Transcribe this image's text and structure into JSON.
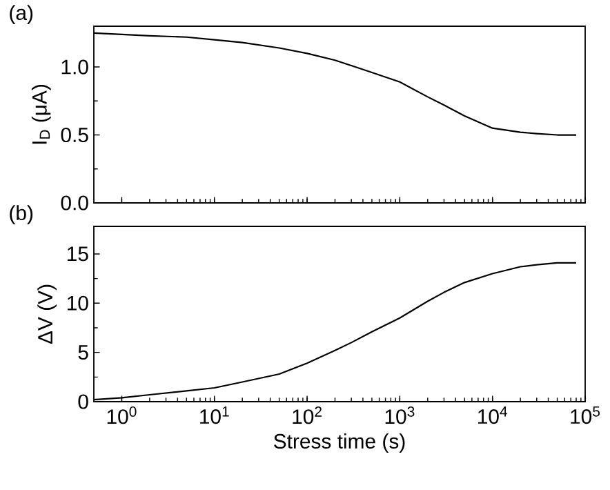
{
  "chart_data": [
    {
      "type": "line",
      "title": "(a)",
      "ylabel": "I$_{D}$ (μA)",
      "log": "x",
      "tick_labels": "y",
      "x": [
        0.5,
        1,
        2,
        5,
        10,
        20,
        50,
        100,
        200,
        500,
        1000,
        2000,
        3000,
        5000,
        10000,
        20000,
        30000,
        50000,
        80000
      ],
      "series": [
        {
          "color": "#000000",
          "values": [
            1.25,
            1.24,
            1.23,
            1.22,
            1.2,
            1.18,
            1.14,
            1.1,
            1.05,
            0.96,
            0.89,
            0.78,
            0.72,
            0.64,
            0.55,
            0.52,
            0.51,
            0.5,
            0.5
          ]
        }
      ],
      "xlim": [
        0.5,
        100000
      ],
      "ylim": [
        0,
        1.3
      ],
      "xticks": [
        {
          "value": 1,
          "label": null
        },
        {
          "value": 10,
          "label": null
        },
        {
          "value": 100,
          "label": null
        },
        {
          "value": 1000,
          "label": null
        },
        {
          "value": 10000,
          "label": null
        },
        {
          "value": 100000,
          "label": null
        }
      ],
      "yticks": [
        {
          "value": 0,
          "label": "0.0"
        },
        {
          "value": 0.5,
          "label": "0.5"
        },
        {
          "value": 1,
          "label": "1.0"
        }
      ]
    },
    {
      "type": "line",
      "title": "(b)",
      "xlabel": "Stress time (s)",
      "ylabel": "ΔV (V)",
      "log": "x",
      "x": [
        0.5,
        1,
        2,
        5,
        10,
        20,
        50,
        100,
        200,
        300,
        500,
        1000,
        2000,
        3000,
        5000,
        10000,
        20000,
        30000,
        50000,
        80000
      ],
      "series": [
        {
          "color": "#000000",
          "values": [
            0.2,
            0.4,
            0.7,
            1.1,
            1.4,
            2.0,
            2.8,
            3.9,
            5.2,
            6.0,
            7.1,
            8.5,
            10.2,
            11.1,
            12.1,
            13.0,
            13.7,
            13.9,
            14.1,
            14.1
          ]
        }
      ],
      "xlim": [
        0.5,
        100000
      ],
      "ylim": [
        0,
        17.8
      ],
      "xticks": [
        {
          "value": 1,
          "label": "10$^{0}$"
        },
        {
          "value": 10,
          "label": "10$^{1}$"
        },
        {
          "value": 100,
          "label": "10$^{2}$"
        },
        {
          "value": 1000,
          "label": "10$^{3}$"
        },
        {
          "value": 10000,
          "label": "10$^{4}$"
        },
        {
          "value": 100000,
          "label": "10$^{5}$"
        }
      ],
      "yticks": [
        0,
        5,
        10,
        15
      ]
    }
  ]
}
